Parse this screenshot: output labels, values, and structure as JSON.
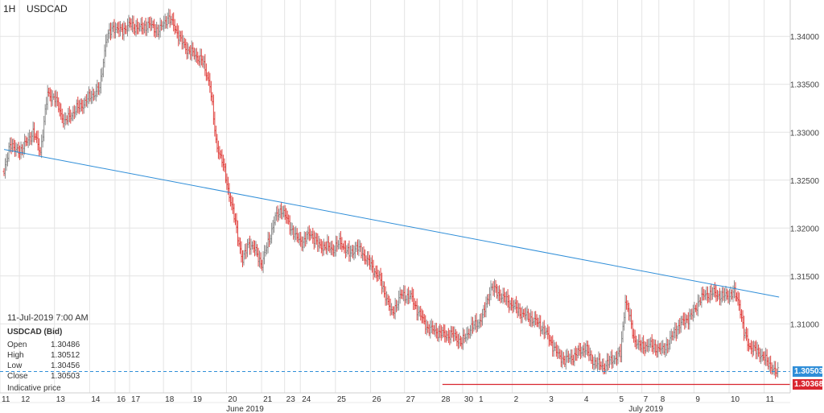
{
  "header": {
    "timeframe": "1H",
    "symbol": "USDCAD"
  },
  "info_box": {
    "timestamp": "11-Jul-2019 7:00 AM",
    "instrument": "USDCAD (Bid)",
    "rows": [
      {
        "label": "Open",
        "value": "1.30486"
      },
      {
        "label": "High",
        "value": "1.30512"
      },
      {
        "label": "Low",
        "value": "1.30456"
      },
      {
        "label": "Close",
        "value": "1.30503"
      }
    ],
    "note": "Indicative price"
  },
  "price_tags": {
    "bid": {
      "text": "1.30503",
      "color": "#2f8ed8"
    },
    "support": {
      "text": "1.30368",
      "color": "#d9262f"
    }
  },
  "colors": {
    "up": "#8c8c8c",
    "down": "#e0423f",
    "trendline": "#2f8ed8",
    "support": "#d9262f",
    "grid": "#e4e4e4"
  },
  "chart_data": {
    "type": "ohlc",
    "title": "USDCAD",
    "timeframe": "1H",
    "ylim": [
      1.3028,
      1.3438
    ],
    "y_ticks": [
      "1.34000",
      "1.33500",
      "1.33000",
      "1.32500",
      "1.32000",
      "1.31500",
      "1.31000"
    ],
    "y_tick_values": [
      1.34,
      1.335,
      1.33,
      1.325,
      1.32,
      1.315,
      1.31
    ],
    "x_day_labels": [
      "11",
      "12",
      "13",
      "14",
      "16",
      "17",
      "18",
      "19",
      "20",
      "21",
      "23",
      "24",
      "25",
      "26",
      "27",
      "28",
      "30",
      "1",
      "2",
      "3",
      "4",
      "5",
      "7",
      "8",
      "9",
      "10",
      "11"
    ],
    "x_day_index": [
      0,
      16,
      45,
      74,
      95,
      107,
      135,
      158,
      187,
      216,
      235,
      248,
      277,
      306,
      334,
      363,
      382,
      394,
      423,
      452,
      481,
      510,
      530,
      544,
      573,
      602,
      631
    ],
    "x_month_labels": [
      "June 2019",
      "July 2019"
    ],
    "x_month_index": [
      191,
      522
    ],
    "total_bars": 640,
    "anchors": [
      [
        0,
        1.3255
      ],
      [
        5,
        1.329
      ],
      [
        9,
        1.328
      ],
      [
        15,
        1.3282
      ],
      [
        24,
        1.33
      ],
      [
        30,
        1.328
      ],
      [
        36,
        1.334
      ],
      [
        42,
        1.3335
      ],
      [
        50,
        1.331
      ],
      [
        58,
        1.3322
      ],
      [
        66,
        1.333
      ],
      [
        72,
        1.3338
      ],
      [
        79,
        1.3345
      ],
      [
        84,
        1.3395
      ],
      [
        90,
        1.341
      ],
      [
        96,
        1.3405
      ],
      [
        104,
        1.3412
      ],
      [
        112,
        1.3408
      ],
      [
        120,
        1.3412
      ],
      [
        128,
        1.3405
      ],
      [
        135,
        1.342
      ],
      [
        141,
        1.341
      ],
      [
        146,
        1.3395
      ],
      [
        152,
        1.3385
      ],
      [
        158,
        1.338
      ],
      [
        163,
        1.3375
      ],
      [
        167,
        1.3362
      ],
      [
        170,
        1.335
      ],
      [
        175,
        1.329
      ],
      [
        180,
        1.327
      ],
      [
        186,
        1.3235
      ],
      [
        191,
        1.3205
      ],
      [
        197,
        1.3165
      ],
      [
        202,
        1.3185
      ],
      [
        208,
        1.3175
      ],
      [
        213,
        1.3162
      ],
      [
        218,
        1.3185
      ],
      [
        224,
        1.321
      ],
      [
        229,
        1.322
      ],
      [
        235,
        1.3205
      ],
      [
        241,
        1.319
      ],
      [
        247,
        1.3185
      ],
      [
        253,
        1.3195
      ],
      [
        259,
        1.3182
      ],
      [
        266,
        1.318
      ],
      [
        272,
        1.3178
      ],
      [
        278,
        1.3185
      ],
      [
        285,
        1.3172
      ],
      [
        291,
        1.318
      ],
      [
        297,
        1.3172
      ],
      [
        303,
        1.316
      ],
      [
        309,
        1.315
      ],
      [
        315,
        1.313
      ],
      [
        320,
        1.311
      ],
      [
        328,
        1.313
      ],
      [
        336,
        1.3128
      ],
      [
        343,
        1.311
      ],
      [
        350,
        1.3095
      ],
      [
        357,
        1.3092
      ],
      [
        364,
        1.3088
      ],
      [
        371,
        1.3088
      ],
      [
        378,
        1.308
      ],
      [
        385,
        1.3095
      ],
      [
        391,
        1.31
      ],
      [
        396,
        1.311
      ],
      [
        402,
        1.3138
      ],
      [
        408,
        1.3132
      ],
      [
        414,
        1.3125
      ],
      [
        421,
        1.3118
      ],
      [
        428,
        1.311
      ],
      [
        436,
        1.3105
      ],
      [
        443,
        1.3098
      ],
      [
        450,
        1.3085
      ],
      [
        457,
        1.3068
      ],
      [
        463,
        1.3062
      ],
      [
        469,
        1.3065
      ],
      [
        475,
        1.307
      ],
      [
        480,
        1.3075
      ],
      [
        485,
        1.3062
      ],
      [
        490,
        1.3058
      ],
      [
        495,
        1.3055
      ],
      [
        500,
        1.306
      ],
      [
        505,
        1.3065
      ],
      [
        509,
        1.3068
      ],
      [
        513,
        1.3125
      ],
      [
        516,
        1.311
      ],
      [
        520,
        1.3085
      ],
      [
        526,
        1.3075
      ],
      [
        532,
        1.3078
      ],
      [
        538,
        1.3075
      ],
      [
        544,
        1.3072
      ],
      [
        549,
        1.308
      ],
      [
        554,
        1.3092
      ],
      [
        559,
        1.31
      ],
      [
        564,
        1.3105
      ],
      [
        569,
        1.311
      ],
      [
        574,
        1.3125
      ],
      [
        579,
        1.313
      ],
      [
        586,
        1.3132
      ],
      [
        593,
        1.3128
      ],
      [
        598,
        1.313
      ],
      [
        603,
        1.3132
      ],
      [
        607,
        1.3122
      ],
      [
        611,
        1.309
      ],
      [
        615,
        1.3078
      ],
      [
        620,
        1.3072
      ],
      [
        625,
        1.3068
      ],
      [
        630,
        1.306
      ],
      [
        634,
        1.3055
      ],
      [
        637,
        1.3048
      ],
      [
        640,
        1.305
      ]
    ],
    "trendline": {
      "from": [
        0,
        1.3282
      ],
      "to": [
        640,
        1.3128
      ]
    },
    "support_line": {
      "price": 1.30368,
      "from_index": 362
    },
    "current_bid": 1.30503
  }
}
